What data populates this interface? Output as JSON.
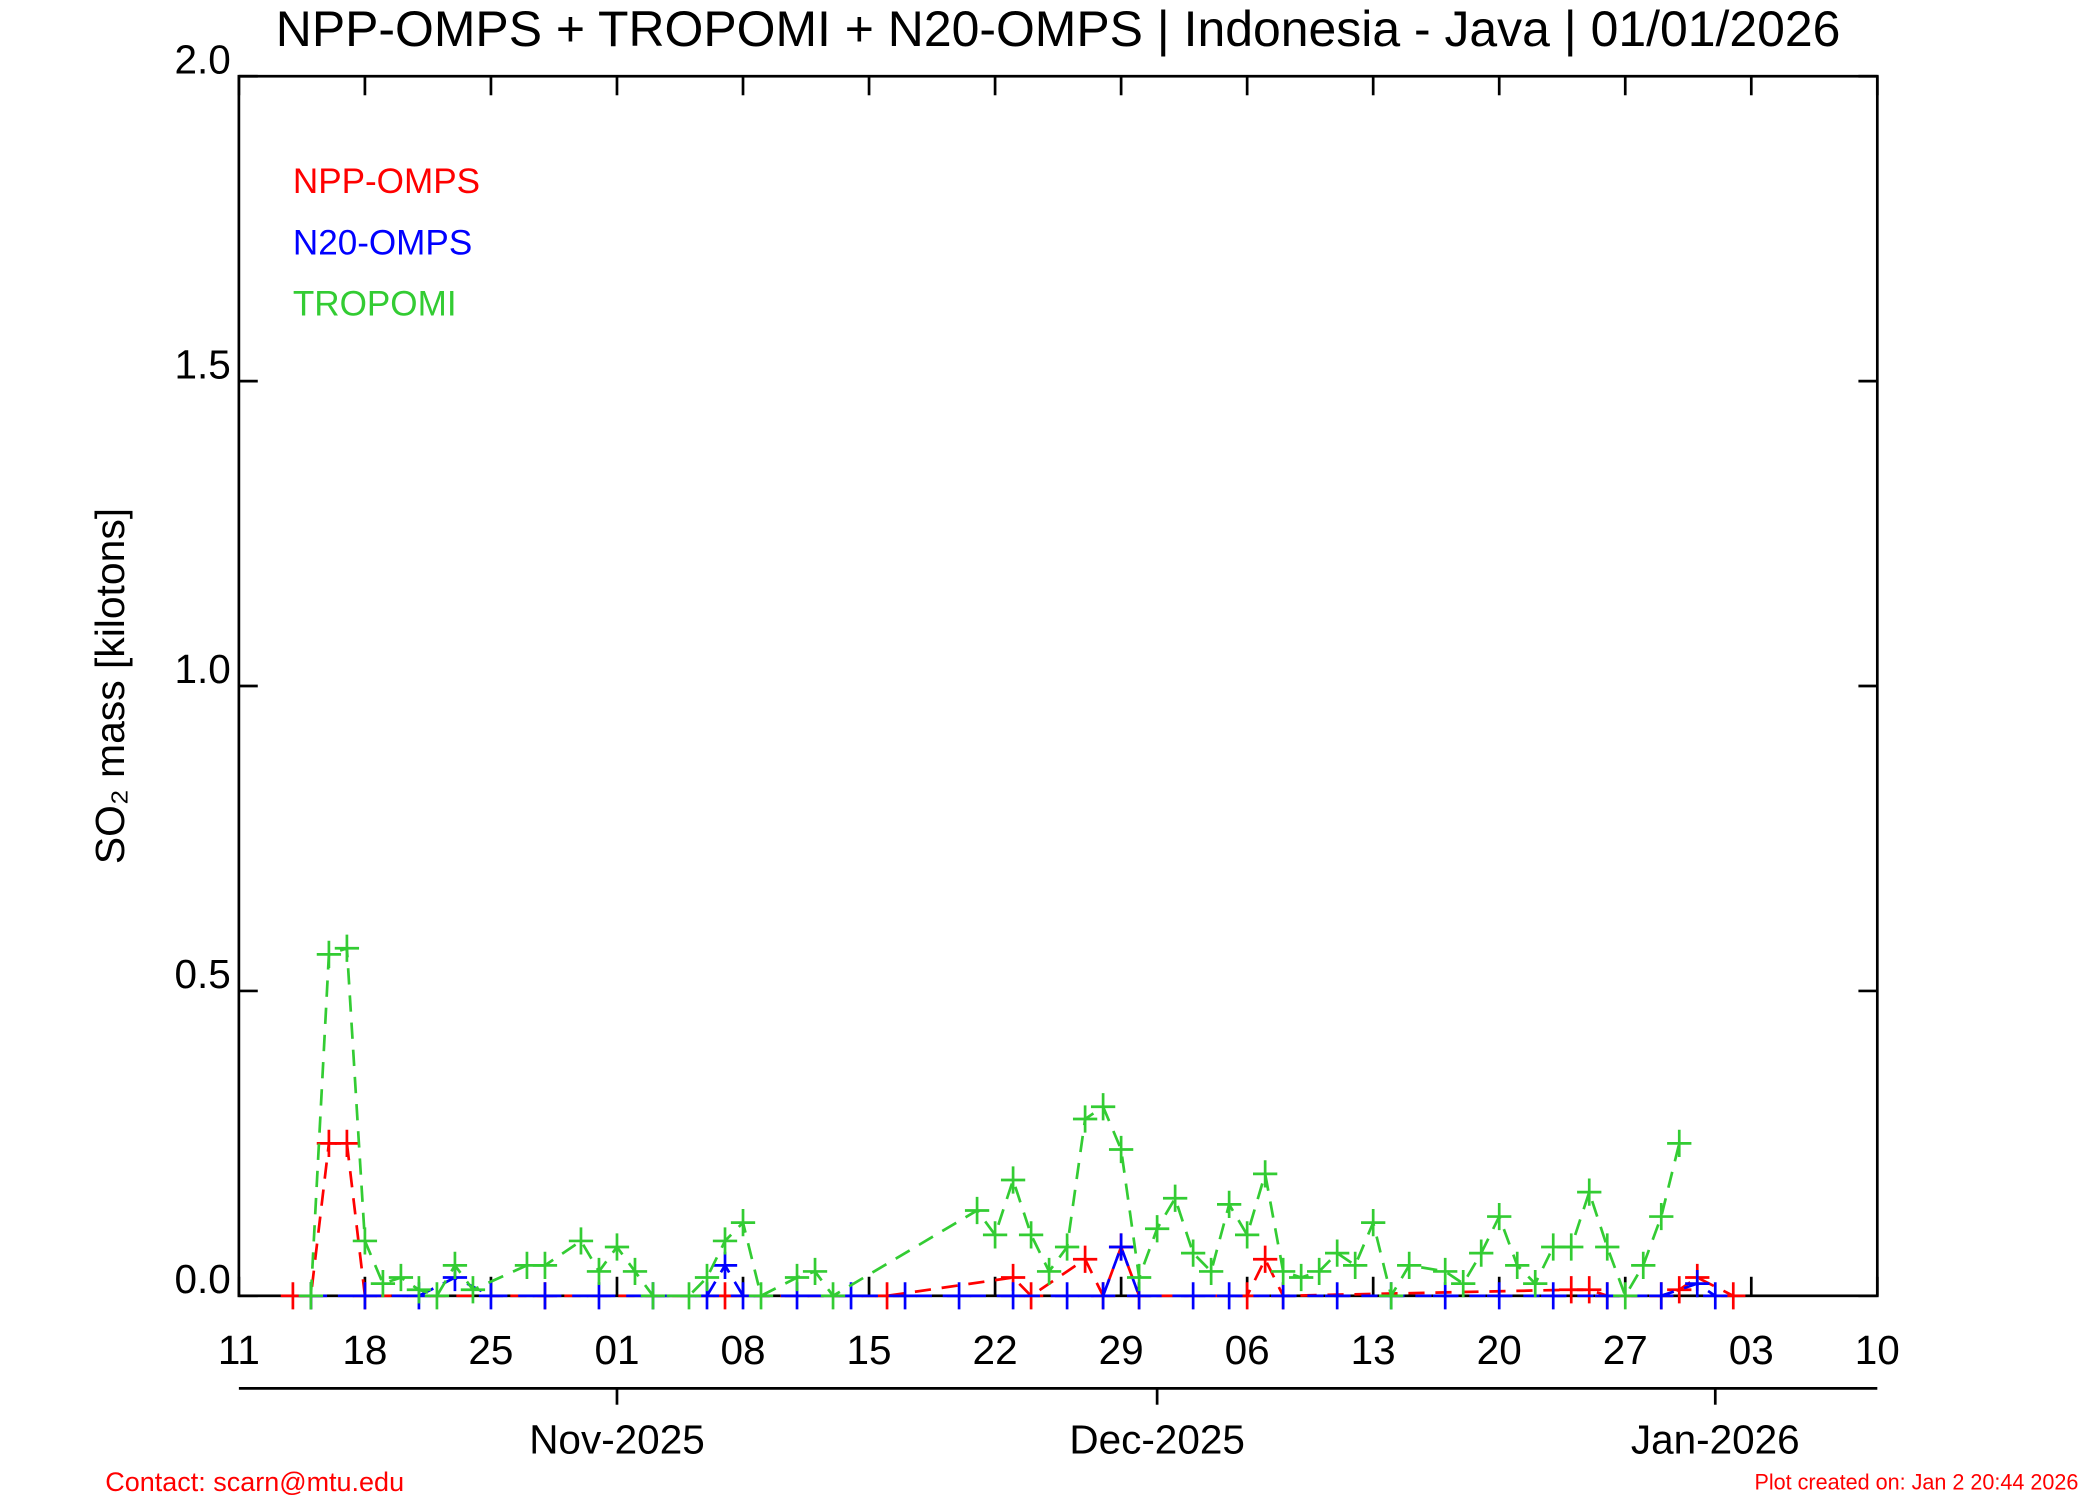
{
  "chart_data": {
    "type": "line",
    "title": "NPP-OMPS + TROPOMI + N20-OMPS | Indonesia - Java | 01/01/2026",
    "ylabel": "SO₂ mass [kilotons]",
    "contact": "Contact: scarn@mtu.edu",
    "created": "Plot created on: Jan  2 20:44 2026",
    "xlim": [
      "2025-10-11",
      "2026-01-10"
    ],
    "xticks": [
      {
        "value": "2025-10-11",
        "label": "11"
      },
      {
        "value": "2025-10-18",
        "label": "18"
      },
      {
        "value": "2025-10-25",
        "label": "25"
      },
      {
        "value": "2025-11-01",
        "label": "01"
      },
      {
        "value": "2025-11-08",
        "label": "08"
      },
      {
        "value": "2025-11-15",
        "label": "15"
      },
      {
        "value": "2025-11-22",
        "label": "22"
      },
      {
        "value": "2025-11-29",
        "label": "29"
      },
      {
        "value": "2025-12-06",
        "label": "06"
      },
      {
        "value": "2025-12-13",
        "label": "13"
      },
      {
        "value": "2025-12-20",
        "label": "20"
      },
      {
        "value": "2025-12-27",
        "label": "27"
      },
      {
        "value": "2026-01-03",
        "label": "03"
      },
      {
        "value": "2026-01-10",
        "label": "10"
      }
    ],
    "month_ticks": [
      {
        "value": "2025-11-01",
        "label": "Nov-2025"
      },
      {
        "value": "2025-12-01",
        "label": "Dec-2025"
      },
      {
        "value": "2026-01-01",
        "label": "Jan-2026"
      }
    ],
    "ylim": [
      0,
      2
    ],
    "yticks": [
      {
        "value": 0,
        "label": "0.0"
      },
      {
        "value": 0.5,
        "label": "0.5"
      },
      {
        "value": 1,
        "label": "1.0"
      },
      {
        "value": 1.5,
        "label": "1.5"
      },
      {
        "value": 2,
        "label": "2.0"
      }
    ],
    "series": [
      {
        "name": "NPP-OMPS",
        "color": "#ff0000",
        "x": [
          "2025-10-14",
          "2025-10-15",
          "2025-10-16",
          "2025-10-17",
          "2025-10-18",
          "2025-10-28",
          "2025-11-07",
          "2025-11-16",
          "2025-11-23",
          "2025-11-24",
          "2025-11-27",
          "2025-11-28",
          "2025-11-29",
          "2025-11-30",
          "2025-12-06",
          "2025-12-07",
          "2025-12-08",
          "2025-12-24",
          "2025-12-25",
          "2025-12-26",
          "2025-12-29",
          "2025-12-30",
          "2025-12-31",
          "2026-01-02"
        ],
        "values": [
          0,
          0,
          0.25,
          0.25,
          0,
          0,
          0,
          0,
          0.03,
          0,
          0.06,
          0,
          0.08,
          0,
          0,
          0.06,
          0,
          0.01,
          0.01,
          0,
          0,
          0.01,
          0.03,
          0
        ]
      },
      {
        "name": "N20-OMPS",
        "color": "#0000ff",
        "x": [
          "2025-10-15",
          "2025-10-18",
          "2025-10-21",
          "2025-10-23",
          "2025-10-25",
          "2025-10-28",
          "2025-10-31",
          "2025-11-03",
          "2025-11-06",
          "2025-11-07",
          "2025-11-08",
          "2025-11-11",
          "2025-11-14",
          "2025-11-17",
          "2025-11-20",
          "2025-11-23",
          "2025-11-26",
          "2025-11-28",
          "2025-11-29",
          "2025-11-30",
          "2025-12-03",
          "2025-12-05",
          "2025-12-08",
          "2025-12-11",
          "2025-12-14",
          "2025-12-17",
          "2025-12-20",
          "2025-12-23",
          "2025-12-26",
          "2025-12-29",
          "2025-12-31",
          "2026-01-01"
        ],
        "values": [
          0,
          0,
          0,
          0.03,
          0,
          0,
          0,
          0,
          0,
          0.05,
          0,
          0,
          0,
          0,
          0,
          0,
          0,
          0,
          0.08,
          0,
          0,
          0,
          0,
          0,
          0,
          0,
          0,
          0,
          0,
          0,
          0.02,
          0
        ]
      },
      {
        "name": "TROPOMI",
        "color": "#33cc33",
        "x": [
          "2025-10-15",
          "2025-10-16",
          "2025-10-17",
          "2025-10-18",
          "2025-10-19",
          "2025-10-20",
          "2025-10-21",
          "2025-10-22",
          "2025-10-23",
          "2025-10-24",
          "2025-10-27",
          "2025-10-28",
          "2025-10-30",
          "2025-10-31",
          "2025-11-01",
          "2025-11-02",
          "2025-11-03",
          "2025-11-05",
          "2025-11-06",
          "2025-11-07",
          "2025-11-08",
          "2025-11-09",
          "2025-11-11",
          "2025-11-12",
          "2025-11-13",
          "2025-11-21",
          "2025-11-22",
          "2025-11-23",
          "2025-11-24",
          "2025-11-25",
          "2025-11-26",
          "2025-11-27",
          "2025-11-28",
          "2025-11-29",
          "2025-11-30",
          "2025-12-01",
          "2025-12-02",
          "2025-12-03",
          "2025-12-04",
          "2025-12-05",
          "2025-12-06",
          "2025-12-07",
          "2025-12-08",
          "2025-12-09",
          "2025-12-10",
          "2025-12-11",
          "2025-12-12",
          "2025-12-13",
          "2025-12-14",
          "2025-12-15",
          "2025-12-17",
          "2025-12-18",
          "2025-12-19",
          "2025-12-20",
          "2025-12-21",
          "2025-12-22",
          "2025-12-23",
          "2025-12-24",
          "2025-12-25",
          "2025-12-26",
          "2025-12-27",
          "2025-12-28",
          "2025-12-29",
          "2025-12-30"
        ],
        "values": [
          0,
          0.56,
          0.57,
          0.09,
          0.02,
          0.03,
          0.01,
          0,
          0.05,
          0.01,
          0.05,
          0.05,
          0.09,
          0.04,
          0.08,
          0.04,
          0,
          0,
          0.03,
          0.09,
          0.12,
          0,
          0.03,
          0.04,
          0,
          0.14,
          0.1,
          0.19,
          0.1,
          0.04,
          0.08,
          0.29,
          0.31,
          0.24,
          0.03,
          0.11,
          0.16,
          0.07,
          0.04,
          0.15,
          0.1,
          0.2,
          0.04,
          0.03,
          0.04,
          0.07,
          0.05,
          0.12,
          0,
          0.05,
          0.04,
          0.02,
          0.07,
          0.13,
          0.05,
          0.02,
          0.08,
          0.08,
          0.17,
          0.08,
          0,
          0.05,
          0.13,
          0.25
        ]
      }
    ],
    "legend_order": [
      0,
      1,
      2
    ]
  }
}
